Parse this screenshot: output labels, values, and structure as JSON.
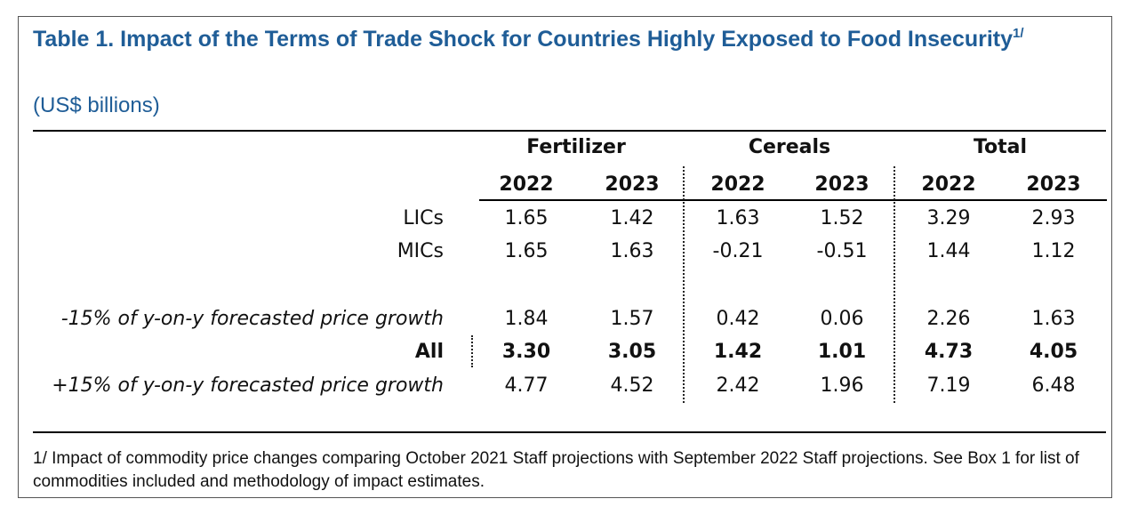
{
  "table": {
    "title": "Table 1. Impact of the Terms of Trade Shock for Countries Highly Exposed to Food Insecurity",
    "title_footnote_marker": "1/",
    "subtitle": "(US$ billions)",
    "groups": [
      "Fertilizer",
      "Cereals",
      "Total"
    ],
    "years": [
      "2022",
      "2023",
      "2022",
      "2023",
      "2022",
      "2023"
    ],
    "rows": [
      {
        "label": "LICs",
        "values": [
          "1.65",
          "1.42",
          "1.63",
          "1.52",
          "3.29",
          "2.93"
        ]
      },
      {
        "label": "MICs",
        "values": [
          "1.65",
          "1.63",
          "-0.21",
          "-0.51",
          "1.44",
          "1.12"
        ]
      },
      {
        "label": "-15% of y-on-y forecasted price growth",
        "values": [
          "1.84",
          "1.57",
          "0.42",
          "0.06",
          "2.26",
          "1.63"
        ]
      },
      {
        "label": "All",
        "values": [
          "3.30",
          "3.05",
          "1.42",
          "1.01",
          "4.73",
          "4.05"
        ]
      },
      {
        "label": "+15% of y-on-y forecasted price growth",
        "values": [
          "4.77",
          "4.52",
          "2.42",
          "1.96",
          "7.19",
          "6.48"
        ]
      }
    ],
    "footnote": "1/ Impact of commodity price changes comparing October 2021 Staff projections with September 2022 Staff projections. See Box 1 for list of commodities included and methodology of impact estimates."
  }
}
